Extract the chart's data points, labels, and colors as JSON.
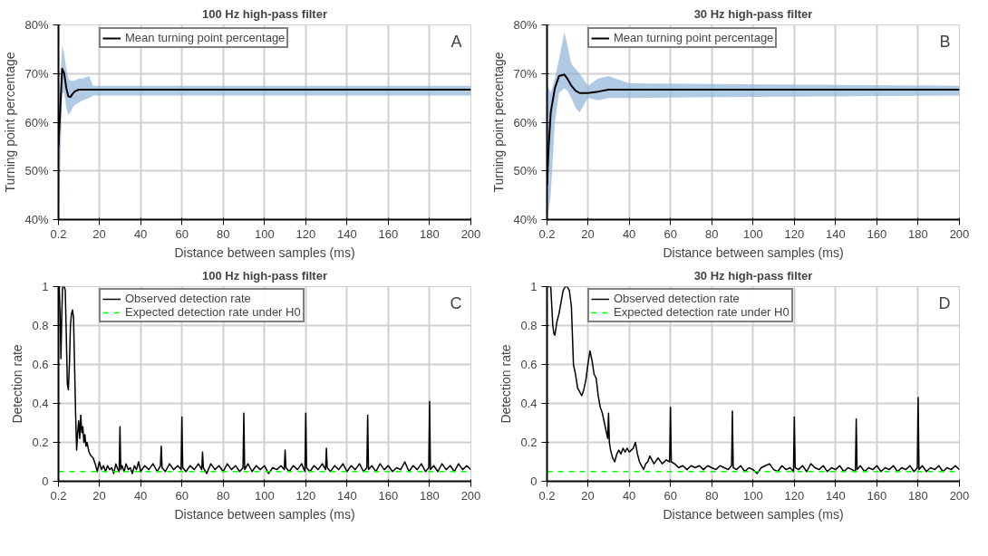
{
  "chart_data": [
    {
      "type": "line",
      "title": "100 Hz high-pass filter",
      "xlabel": "Distance between samples (ms)",
      "ylabel": "Turning point percentage",
      "annotations": [
        "A"
      ],
      "xlim": [
        0.2,
        200
      ],
      "xticks": [
        0.2,
        20,
        40,
        60,
        80,
        100,
        120,
        140,
        160,
        180,
        200
      ],
      "ylim": [
        40,
        80
      ],
      "yticks": [
        {
          "value": 40,
          "label": "40%"
        },
        {
          "value": 50,
          "label": "50%"
        },
        {
          "value": 60,
          "label": "60%"
        },
        {
          "value": 70,
          "label": "70%"
        },
        {
          "value": 80,
          "label": "80%"
        }
      ],
      "grid": true,
      "legend": "top left",
      "series": [
        {
          "name": "Mean turning point percentage",
          "color": "#000000",
          "x": [
            0.2,
            1,
            2,
            3,
            4,
            5,
            6,
            7,
            8,
            10,
            12,
            15,
            17,
            20,
            200
          ],
          "values": [
            55,
            62,
            71,
            70,
            67,
            65.3,
            65.2,
            65.8,
            66.3,
            66.7,
            66.7,
            66.7,
            66.7,
            66.7,
            66.7
          ],
          "lower": [
            40,
            50,
            66,
            66,
            63,
            61.5,
            62,
            63,
            63.5,
            64,
            64.5,
            65,
            65.5,
            65.5,
            65.5
          ],
          "upper": [
            62,
            68,
            76,
            74,
            71,
            69,
            68.5,
            68.5,
            68.5,
            69,
            69,
            69.5,
            67.5,
            67.5,
            67.5
          ]
        }
      ]
    },
    {
      "type": "line",
      "title": "30 Hz high-pass filter",
      "xlabel": "Distance between samples (ms)",
      "ylabel": "Turning point percentage",
      "annotations": [
        "B"
      ],
      "xlim": [
        0.2,
        200
      ],
      "xticks": [
        0.2,
        20,
        40,
        60,
        80,
        100,
        120,
        140,
        160,
        180,
        200
      ],
      "ylim": [
        40,
        80
      ],
      "yticks": [
        {
          "value": 40,
          "label": "40%"
        },
        {
          "value": 50,
          "label": "50%"
        },
        {
          "value": 60,
          "label": "60%"
        },
        {
          "value": 70,
          "label": "70%"
        },
        {
          "value": 80,
          "label": "80%"
        }
      ],
      "grid": true,
      "legend": "top left",
      "series": [
        {
          "name": "Mean turning point percentage",
          "color": "#000000",
          "x": [
            0.2,
            1,
            2,
            4,
            6,
            8.6,
            10,
            12,
            14,
            16,
            20,
            25,
            30,
            40,
            200
          ],
          "values": [
            47,
            55,
            62,
            67,
            69.5,
            69.8,
            69,
            67.5,
            66.5,
            66,
            66,
            66.3,
            66.7,
            66.7,
            66.7
          ],
          "lower": [
            40,
            42,
            45,
            60,
            66,
            67,
            66.5,
            65,
            63,
            62,
            65,
            64.5,
            65,
            65,
            65.5
          ],
          "upper": [
            68,
            67,
            66,
            69,
            73,
            78.5,
            76,
            72,
            71,
            70,
            67.5,
            69,
            69.5,
            68,
            67.5
          ]
        }
      ]
    },
    {
      "type": "line",
      "title": "100 Hz high-pass filter",
      "xlabel": "Distance between samples (ms)",
      "ylabel": "Detection rate",
      "annotations": [
        "C"
      ],
      "xlim": [
        0.2,
        200
      ],
      "xticks": [
        0.2,
        20,
        40,
        60,
        80,
        100,
        120,
        140,
        160,
        180,
        200
      ],
      "ylim": [
        0,
        1
      ],
      "yticks": [
        0,
        0.2,
        0.4,
        0.6,
        0.8,
        1
      ],
      "grid": true,
      "legend": "top left",
      "series": [
        {
          "name": "Observed detection rate",
          "color": "#000000",
          "x": [
            0.2,
            0.6,
            1,
            1.4,
            1.8,
            2.2,
            2.6,
            3,
            3.5,
            4,
            4.5,
            5,
            5.5,
            6,
            6.5,
            7,
            7.5,
            8,
            8.5,
            9,
            9.5,
            10,
            10.5,
            11,
            11.5,
            12,
            12.5,
            13,
            13.5,
            14,
            15,
            16,
            17,
            18,
            19,
            20,
            21,
            22,
            23,
            24,
            25,
            26,
            27,
            28,
            29,
            29.6,
            30,
            30.4,
            31,
            32,
            33,
            34,
            35,
            36,
            37,
            38,
            39,
            40,
            42,
            44,
            46,
            48,
            49.6,
            50,
            50.4,
            52,
            54,
            56,
            58,
            59.6,
            60,
            60.4,
            62,
            64,
            66,
            68,
            69.6,
            70,
            70.4,
            72,
            74,
            76,
            78,
            80,
            82,
            84,
            86,
            88,
            89.6,
            90,
            90.4,
            92,
            94,
            96,
            98,
            100,
            102,
            104,
            106,
            108,
            109.6,
            110,
            110.4,
            112,
            114,
            116,
            118,
            119.6,
            120,
            120.4,
            122,
            124,
            126,
            128,
            129.6,
            130,
            130.4,
            132,
            134,
            136,
            138,
            140,
            142,
            144,
            146,
            148,
            149.6,
            150,
            150.4,
            152,
            154,
            156,
            158,
            160,
            162,
            164,
            166,
            168,
            170,
            172,
            174,
            176,
            178,
            179.6,
            180,
            180.4,
            182,
            184,
            186,
            188,
            190,
            192,
            194,
            196,
            198,
            200
          ],
          "values": [
            1,
            1,
            0.85,
            0.63,
            0.85,
            1,
            1,
            1,
            0.98,
            0.75,
            0.5,
            0.47,
            0.6,
            0.8,
            0.86,
            0.88,
            0.84,
            0.6,
            0.35,
            0.16,
            0.25,
            0.31,
            0.22,
            0.34,
            0.25,
            0.28,
            0.2,
            0.24,
            0.18,
            0.2,
            0.15,
            0.13,
            0.12,
            0.09,
            0.05,
            0.1,
            0.06,
            0.08,
            0.05,
            0.08,
            0.06,
            0.07,
            0.04,
            0.09,
            0.06,
            0.05,
            0.28,
            0.06,
            0.08,
            0.05,
            0.09,
            0.06,
            0.07,
            0.04,
            0.08,
            0.06,
            0.1,
            0.05,
            0.08,
            0.06,
            0.09,
            0.05,
            0.08,
            0.18,
            0.07,
            0.05,
            0.09,
            0.06,
            0.08,
            0.06,
            0.33,
            0.07,
            0.05,
            0.08,
            0.06,
            0.09,
            0.06,
            0.15,
            0.07,
            0.04,
            0.09,
            0.06,
            0.08,
            0.05,
            0.09,
            0.06,
            0.08,
            0.05,
            0.07,
            0.35,
            0.06,
            0.09,
            0.05,
            0.08,
            0.06,
            0.08,
            0.04,
            0.07,
            0.06,
            0.08,
            0.06,
            0.16,
            0.07,
            0.05,
            0.08,
            0.06,
            0.09,
            0.05,
            0.35,
            0.07,
            0.05,
            0.08,
            0.06,
            0.09,
            0.06,
            0.17,
            0.07,
            0.05,
            0.08,
            0.06,
            0.09,
            0.05,
            0.08,
            0.06,
            0.09,
            0.05,
            0.07,
            0.34,
            0.06,
            0.08,
            0.05,
            0.09,
            0.06,
            0.08,
            0.05,
            0.07,
            0.06,
            0.1,
            0.05,
            0.08,
            0.06,
            0.09,
            0.05,
            0.07,
            0.41,
            0.06,
            0.08,
            0.05,
            0.09,
            0.06,
            0.08,
            0.05,
            0.09,
            0.06,
            0.08,
            0.06
          ]
        },
        {
          "name": "Expected detection rate under H0",
          "color": "#00ff00",
          "line_style": "dashed",
          "x": [
            0.2,
            200
          ],
          "values": [
            0.05,
            0.05
          ]
        }
      ]
    },
    {
      "type": "line",
      "title": "30 Hz high-pass filter",
      "xlabel": "Distance between samples (ms)",
      "ylabel": "Detection rate",
      "annotations": [
        "D"
      ],
      "xlim": [
        0.2,
        200
      ],
      "xticks": [
        0.2,
        20,
        40,
        60,
        80,
        100,
        120,
        140,
        160,
        180,
        200
      ],
      "ylim": [
        0,
        1
      ],
      "yticks": [
        0,
        0.2,
        0.4,
        0.6,
        0.8,
        1
      ],
      "grid": true,
      "legend": "top left",
      "series": [
        {
          "name": "Observed detection rate",
          "color": "#000000",
          "x": [
            0.2,
            1,
            2,
            2.5,
            3,
            3.5,
            4,
            5,
            6,
            7,
            8,
            9,
            10,
            11,
            12,
            12.5,
            13,
            14,
            15,
            16,
            17,
            18,
            19,
            20,
            21,
            22,
            23,
            24,
            25,
            26,
            27,
            28,
            29,
            29.6,
            30,
            30.4,
            31,
            32,
            33,
            34,
            35,
            36,
            37,
            38,
            39,
            40,
            41,
            42,
            43,
            44,
            45,
            46,
            47,
            48,
            49,
            50,
            52,
            54,
            56,
            58,
            59.6,
            60,
            60.4,
            62,
            64,
            66,
            68,
            70,
            72,
            74,
            76,
            78,
            80,
            82,
            84,
            86,
            88,
            89.6,
            90,
            90.4,
            92,
            94,
            96,
            98,
            100,
            102,
            104,
            106,
            108,
            110,
            112,
            114,
            116,
            118,
            119.6,
            120,
            120.4,
            122,
            124,
            126,
            128,
            130,
            132,
            134,
            136,
            138,
            140,
            142,
            144,
            146,
            148,
            149.6,
            150,
            150.4,
            152,
            154,
            156,
            158,
            160,
            162,
            164,
            166,
            168,
            170,
            172,
            174,
            176,
            178,
            179.6,
            180,
            180.4,
            182,
            184,
            186,
            188,
            190,
            192,
            194,
            196,
            198,
            200
          ],
          "values": [
            1,
            1,
            1,
            0.9,
            0.8,
            0.76,
            0.75,
            0.82,
            0.86,
            0.92,
            0.98,
            1,
            1,
            0.98,
            0.9,
            0.75,
            0.6,
            0.55,
            0.48,
            0.46,
            0.44,
            0.47,
            0.52,
            0.6,
            0.67,
            0.62,
            0.55,
            0.53,
            0.44,
            0.38,
            0.35,
            0.3,
            0.25,
            0.22,
            0.35,
            0.2,
            0.16,
            0.12,
            0.1,
            0.14,
            0.16,
            0.14,
            0.17,
            0.15,
            0.17,
            0.15,
            0.16,
            0.17,
            0.2,
            0.14,
            0.1,
            0.08,
            0.06,
            0.09,
            0.1,
            0.13,
            0.09,
            0.12,
            0.09,
            0.11,
            0.1,
            0.38,
            0.1,
            0.09,
            0.07,
            0.08,
            0.06,
            0.08,
            0.07,
            0.08,
            0.06,
            0.08,
            0.07,
            0.06,
            0.08,
            0.07,
            0.06,
            0.08,
            0.36,
            0.07,
            0.06,
            0.08,
            0.05,
            0.07,
            0.06,
            0.04,
            0.07,
            0.08,
            0.09,
            0.06,
            0.05,
            0.08,
            0.06,
            0.07,
            0.05,
            0.33,
            0.07,
            0.06,
            0.08,
            0.05,
            0.09,
            0.07,
            0.06,
            0.08,
            0.05,
            0.07,
            0.06,
            0.08,
            0.05,
            0.07,
            0.06,
            0.05,
            0.32,
            0.06,
            0.08,
            0.05,
            0.07,
            0.06,
            0.08,
            0.05,
            0.07,
            0.06,
            0.08,
            0.05,
            0.07,
            0.06,
            0.08,
            0.05,
            0.07,
            0.43,
            0.06,
            0.08,
            0.05,
            0.07,
            0.06,
            0.08,
            0.05,
            0.07,
            0.06,
            0.08,
            0.06
          ]
        },
        {
          "name": "Expected detection rate under H0",
          "color": "#00ff00",
          "line_style": "dashed",
          "x": [
            0.2,
            200
          ],
          "values": [
            0.05,
            0.05
          ]
        }
      ]
    }
  ]
}
